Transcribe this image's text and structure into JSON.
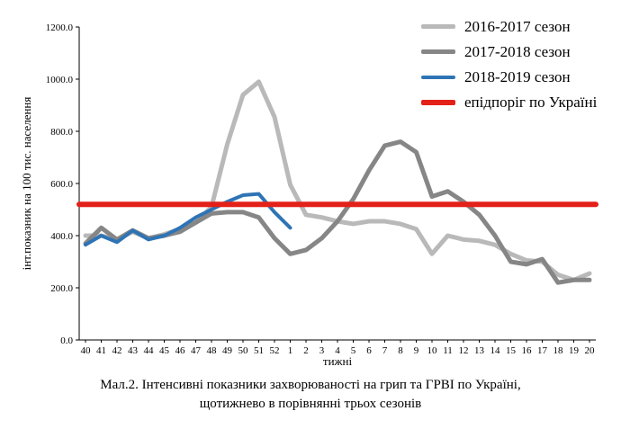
{
  "figure": {
    "caption_line1": "Мал.2. Інтенсивні показники захворюваності на грип та ГРВІ по Україні,",
    "caption_line2": "щотижнево в порівнянні трьох сезонів"
  },
  "chart_data": {
    "type": "line",
    "title": "",
    "xlabel": "тижні",
    "ylabel": "інт.показник на 100 тис. населення",
    "ylim": [
      0,
      1200
    ],
    "ytick_step": 200,
    "ytick_decimals": 1,
    "grid": false,
    "legend_position": "top-right",
    "categories": [
      "40",
      "41",
      "42",
      "43",
      "44",
      "45",
      "46",
      "47",
      "48",
      "49",
      "50",
      "51",
      "52",
      "1",
      "2",
      "3",
      "4",
      "5",
      "6",
      "7",
      "8",
      "9",
      "10",
      "11",
      "12",
      "13",
      "14",
      "15",
      "16",
      "17",
      "18",
      "19",
      "20"
    ],
    "series": [
      {
        "name": "2016-2017 сезон",
        "color": "#b9b9b9",
        "line_width": 5,
        "values": [
          400,
          400,
          385,
          415,
          390,
          405,
          425,
          450,
          510,
          750,
          940,
          990,
          855,
          595,
          480,
          470,
          455,
          445,
          455,
          455,
          445,
          425,
          330,
          400,
          385,
          380,
          365,
          330,
          305,
          300,
          250,
          230,
          255
        ]
      },
      {
        "name": "2017-2018 сезон",
        "color": "#868686",
        "line_width": 5,
        "values": [
          370,
          430,
          385,
          420,
          390,
          400,
          415,
          450,
          485,
          490,
          490,
          470,
          390,
          330,
          345,
          390,
          455,
          540,
          650,
          745,
          760,
          720,
          550,
          570,
          530,
          480,
          400,
          300,
          290,
          310,
          220,
          230,
          230
        ]
      },
      {
        "name": "2018-2019 сезон",
        "color": "#2e74b5",
        "line_width": 4,
        "values": [
          365,
          400,
          375,
          420,
          385,
          400,
          430,
          470,
          500,
          530,
          555,
          560,
          490,
          430,
          null,
          null,
          null,
          null,
          null,
          null,
          null,
          null,
          null,
          null,
          null,
          null,
          null,
          null,
          null,
          null,
          null,
          null,
          null
        ]
      },
      {
        "name": "епідпоріг по Україні",
        "color": "#e32119",
        "line_width": 6,
        "threshold_value": 520
      }
    ]
  }
}
